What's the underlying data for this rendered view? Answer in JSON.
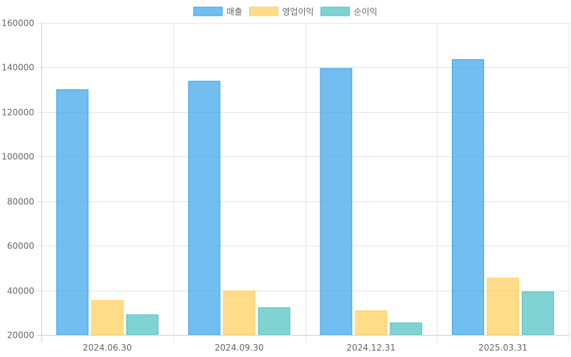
{
  "chart_data": {
    "type": "bar",
    "title": "",
    "xlabel": "",
    "ylabel": "",
    "categories": [
      "2024.06.30",
      "2024.09.30",
      "2024.12.31",
      "2025.03.31"
    ],
    "series": [
      {
        "name": "매출",
        "values": [
          130000,
          133800,
          139500,
          143500
        ],
        "color": "#36a2eb",
        "fill": "rgba(54,162,235,0.7)"
      },
      {
        "name": "영업이익",
        "values": [
          35400,
          39700,
          30800,
          45400
        ],
        "color": "#ffce56",
        "fill": "rgba(255,206,86,0.7)"
      },
      {
        "name": "순이익",
        "values": [
          29000,
          32200,
          25400,
          39300
        ],
        "color": "#4bc0c0",
        "fill": "rgba(75,192,192,0.7)"
      }
    ],
    "ylim": [
      20000,
      160000
    ],
    "yticks": [
      "160000",
      "140000",
      "120000",
      "100000",
      "80000",
      "60000",
      "40000",
      "20000"
    ],
    "grid": true,
    "legend_position": "top-center"
  }
}
